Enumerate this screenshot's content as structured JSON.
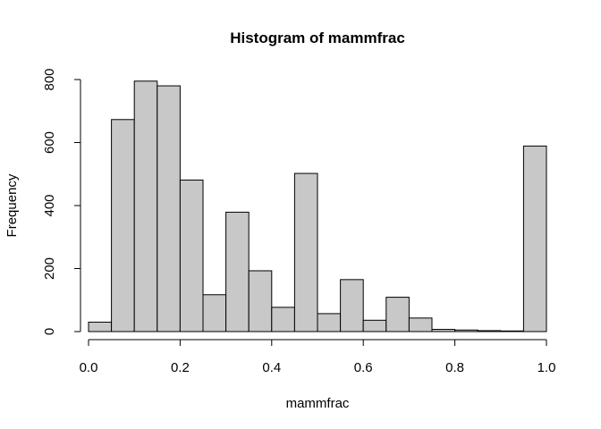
{
  "chart_data": {
    "type": "bar",
    "title": "Histogram of mammfrac",
    "xlabel": "mammfrac",
    "ylabel": "Frequency",
    "bin_width": 0.05,
    "bin_starts": [
      0.0,
      0.05,
      0.1,
      0.15,
      0.2,
      0.25,
      0.3,
      0.35,
      0.4,
      0.45,
      0.5,
      0.55,
      0.6,
      0.65,
      0.7,
      0.75,
      0.8,
      0.85,
      0.9,
      0.95
    ],
    "values": [
      30,
      673,
      795,
      780,
      481,
      117,
      379,
      193,
      77,
      502,
      57,
      165,
      36,
      109,
      43,
      7,
      5,
      3,
      2,
      589
    ],
    "xlim": [
      0,
      1
    ],
    "ylim": [
      0,
      800
    ],
    "xticks": [
      0.0,
      0.2,
      0.4,
      0.6,
      0.8,
      1.0
    ],
    "xtick_labels": [
      "0.0",
      "0.2",
      "0.4",
      "0.6",
      "0.8",
      "1.0"
    ],
    "yticks": [
      0,
      200,
      400,
      600,
      800
    ],
    "ytick_labels": [
      "0",
      "200",
      "400",
      "600",
      "800"
    ],
    "bar_fill": "#c8c8c8",
    "bar_stroke": "#000000",
    "grid": false,
    "legend": "none"
  }
}
